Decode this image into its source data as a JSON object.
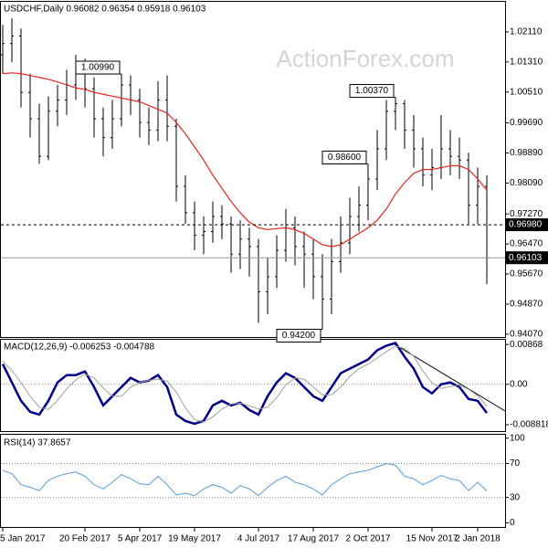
{
  "chart_data": [
    {
      "type": "ohlc",
      "title": "USDCHF,Daily  0.96082 0.96354 0.95918 0.96103",
      "watermark": "ActionForex.com",
      "color": "#000000",
      "categories": [
        "5 Jan 2017",
        null,
        null,
        null,
        null,
        null,
        null,
        null,
        null,
        "20 Feb 2017",
        null,
        null,
        null,
        null,
        null,
        "5 Apr 2017",
        null,
        null,
        null,
        null,
        null,
        "19 May 2017",
        null,
        null,
        null,
        null,
        null,
        null,
        "4 Jul 2017",
        null,
        null,
        null,
        null,
        null,
        "17 Aug 2017",
        null,
        null,
        null,
        null,
        null,
        "2 Oct 2017",
        null,
        null,
        null,
        null,
        null,
        null,
        "15 Nov 2017",
        null,
        null,
        null,
        null,
        "2 Jan 2018",
        null
      ],
      "open": [
        1.015,
        1.018,
        1.02,
        1.005,
        0.998,
        0.988,
        1.0,
        1.003,
        1.007,
        1.01,
        1.006,
        0.998,
        0.993,
        0.998,
        1.007,
        1.003,
        0.997,
        0.995,
        1.003,
        0.996,
        0.98,
        0.973,
        0.967,
        0.968,
        0.972,
        0.97,
        0.962,
        0.966,
        0.964,
        0.952,
        0.956,
        0.963,
        0.969,
        0.964,
        0.962,
        0.956,
        0.95,
        0.96,
        0.965,
        0.972,
        0.975,
        0.982,
        0.99,
        1.0,
        1.002,
        0.995,
        0.99,
        0.983,
        0.985,
        0.99,
        0.988,
        0.987,
        0.975,
        0.98
      ],
      "high": [
        1.023,
        1.0247,
        1.022,
        1.01,
        1.002,
        1.004,
        1.007,
        1.011,
        1.015,
        1.014,
        1.009,
        1.001,
        1.003,
        1.0099,
        1.0095,
        1.006,
        1.001,
        1.008,
        1.0095,
        0.998,
        0.983,
        0.976,
        0.972,
        0.976,
        0.975,
        0.972,
        0.971,
        0.969,
        0.966,
        0.961,
        0.967,
        0.974,
        0.972,
        0.968,
        0.966,
        0.962,
        0.966,
        0.972,
        0.977,
        0.98,
        0.986,
        0.995,
        1.003,
        1.0037,
        1.003,
        0.999,
        0.993,
        0.99,
        0.999,
        0.995,
        0.993,
        0.989,
        0.985,
        0.983
      ],
      "low": [
        1.01,
        1.013,
        1.001,
        0.993,
        0.986,
        0.987,
        0.996,
        0.999,
        1.003,
        1.001,
        0.993,
        0.988,
        0.99,
        0.996,
        0.999,
        0.993,
        0.991,
        0.992,
        0.992,
        0.976,
        0.97,
        0.963,
        0.962,
        0.965,
        0.966,
        0.957,
        0.958,
        0.956,
        0.9437,
        0.946,
        0.953,
        0.96,
        0.959,
        0.953,
        0.95,
        0.942,
        0.946,
        0.957,
        0.962,
        0.968,
        0.971,
        0.979,
        0.987,
        0.995,
        0.99,
        0.985,
        0.98,
        0.979,
        0.982,
        0.983,
        0.982,
        0.97,
        0.97,
        0.954
      ],
      "close": [
        1.018,
        1.02,
        1.005,
        0.998,
        0.988,
        1.0,
        1.003,
        1.007,
        1.01,
        1.006,
        0.998,
        0.993,
        0.998,
        1.007,
        1.003,
        0.997,
        0.995,
        1.003,
        0.996,
        0.98,
        0.973,
        0.967,
        0.968,
        0.972,
        0.97,
        0.962,
        0.966,
        0.964,
        0.952,
        0.956,
        0.963,
        0.969,
        0.964,
        0.962,
        0.956,
        0.95,
        0.96,
        0.965,
        0.972,
        0.975,
        0.982,
        0.99,
        1.0,
        1.002,
        0.995,
        0.99,
        0.983,
        0.985,
        0.99,
        0.988,
        0.987,
        0.975,
        0.98,
        0.961
      ],
      "ma": {
        "color": "#e8251f",
        "values": [
          1.01,
          1.0102,
          1.01,
          1.0095,
          1.009,
          1.0085,
          1.0078,
          1.007,
          1.0062,
          1.0058,
          1.005,
          1.0045,
          1.004,
          1.0035,
          1.003,
          1.0025,
          1.0015,
          1.0005,
          0.9995,
          0.997,
          0.994,
          0.9905,
          0.987,
          0.983,
          0.9795,
          0.976,
          0.973,
          0.9705,
          0.969,
          0.9685,
          0.9688,
          0.969,
          0.9685,
          0.9675,
          0.966,
          0.9645,
          0.964,
          0.9645,
          0.966,
          0.9675,
          0.969,
          0.971,
          0.974,
          0.978,
          0.981,
          0.9835,
          0.9845,
          0.9845,
          0.985,
          0.9855,
          0.9855,
          0.9845,
          0.982,
          0.979
        ]
      },
      "ylim": [
        0.9397,
        1.0291
      ],
      "yticks": [
        {
          "value": 1.0211,
          "label": "1.02110"
        },
        {
          "value": 1.0131,
          "label": "1.01310"
        },
        {
          "value": 1.0051,
          "label": "1.00510"
        },
        {
          "value": 0.9969,
          "label": "0.99690"
        },
        {
          "value": 0.9889,
          "label": "0.98890"
        },
        {
          "value": 0.9809,
          "label": "0.98090"
        },
        {
          "value": 0.9727,
          "label": "0.97270"
        },
        {
          "value": 0.9647,
          "label": "0.96470"
        },
        {
          "value": 0.9567,
          "label": "0.95670"
        },
        {
          "value": 0.9487,
          "label": "0.94870"
        },
        {
          "value": 0.9407,
          "label": "0.94070"
        }
      ],
      "lines": [
        {
          "value": 0.9698,
          "label": "0.96980",
          "style": "dashed"
        },
        {
          "value": 0.96103,
          "label": "0.96103",
          "style": "solid"
        }
      ],
      "annotations": [
        {
          "value": 1.0099,
          "label": "1.00990"
        },
        {
          "value": 0.986,
          "label": "0.98600"
        },
        {
          "value": 1.0037,
          "label": "1.00370"
        },
        {
          "value": 0.942,
          "label": "0.94200"
        }
      ]
    },
    {
      "type": "line",
      "title": "MACD(12,26,9) -0.006253 -0.004788",
      "series": [
        {
          "color": "#00008b",
          "width": 2.5,
          "values": [
            0.0044,
            0.0004,
            -0.0036,
            -0.006,
            -0.0066,
            -0.0036,
            0.0004,
            0.002,
            0.002,
            0.0028,
            -0.0006,
            -0.0046,
            -0.0026,
            -0.0006,
            0.0014,
            0.0004,
            0.0008,
            0.002,
            -0.0006,
            -0.0066,
            -0.008,
            -0.0086,
            -0.008,
            -0.0046,
            -0.0036,
            -0.0046,
            -0.004,
            -0.0056,
            -0.0066,
            -0.0026,
            0.0004,
            0.0024,
            0.0014,
            -0.0006,
            -0.0026,
            -0.0036,
            -0.0006,
            0.0024,
            0.0034,
            0.0044,
            0.0054,
            0.0074,
            0.0084,
            0.009,
            0.006,
            0.0034,
            -0.0006,
            -0.002,
            0,
            0.0004,
            -0.0006,
            -0.0032,
            -0.0036,
            -0.006253
          ]
        },
        {
          "color": "#a0a0a0",
          "width": 1,
          "values": [
            0.005,
            0.003,
            0.0004,
            -0.0026,
            -0.005,
            -0.0055,
            -0.0035,
            -0.001,
            0.001,
            0.0022,
            0.0014,
            -0.0008,
            -0.0026,
            -0.0026,
            -0.0006,
            0.0004,
            0.0009,
            0.0011,
            0.0007,
            -0.0017,
            -0.0051,
            -0.0077,
            -0.0082,
            -0.0071,
            -0.0054,
            -0.0043,
            -0.0041,
            -0.0047,
            -0.0054,
            -0.005,
            -0.0029,
            -0.0001,
            0.0014,
            0.0011,
            -0.0006,
            -0.0023,
            -0.0023,
            -0.0006,
            0.0017,
            0.0034,
            0.0044,
            0.0057,
            0.0071,
            0.0083,
            0.0078,
            0.0061,
            0.0029,
            0.0003,
            -0.0009,
            -0.0005,
            -0.0001,
            -0.0011,
            -0.0025,
            -0.004788
          ]
        }
      ],
      "ylim": [
        -0.0104,
        0.0097
      ],
      "yticks": [
        0.00868,
        {
          "value": 0,
          "label": "0.00"
        },
        -0.008818
      ],
      "levels": [
        0
      ]
    },
    {
      "type": "line",
      "title": "RSI(14) 37.8657",
      "series": [
        {
          "color": "#5b9bd5",
          "width": 1,
          "values": [
            62,
            58,
            45,
            42,
            38,
            50,
            55,
            58,
            60,
            55,
            45,
            40,
            48,
            57,
            52,
            46,
            45,
            55,
            45,
            33,
            35,
            32,
            40,
            45,
            42,
            35,
            44,
            40,
            32,
            42,
            50,
            55,
            48,
            45,
            40,
            33,
            45,
            52,
            58,
            60,
            62,
            66,
            70,
            68,
            55,
            52,
            45,
            50,
            56,
            52,
            50,
            38,
            48,
            37.8657
          ]
        }
      ],
      "ylim": [
        -6,
        104
      ],
      "yticks": [
        100,
        70,
        30,
        0
      ],
      "levels": [
        70,
        30
      ]
    }
  ]
}
